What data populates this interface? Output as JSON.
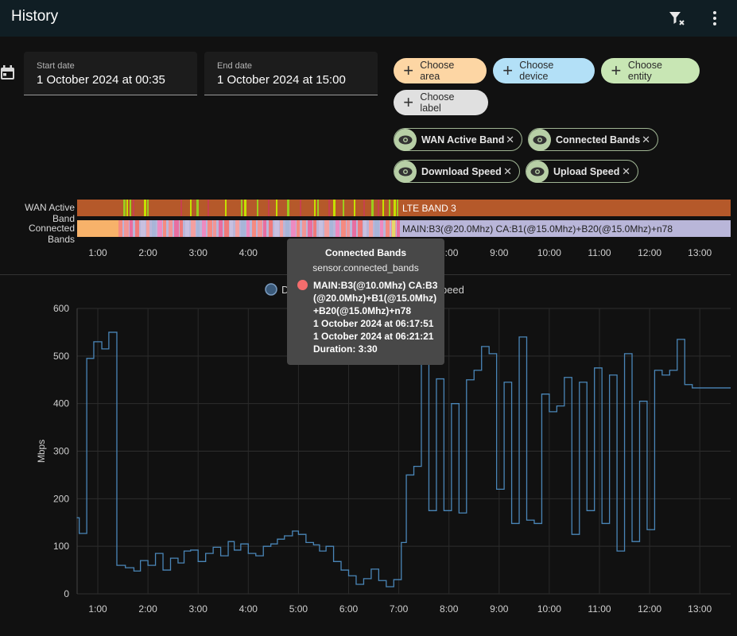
{
  "app": {
    "title": "History"
  },
  "toolbar": {
    "filter_clear_icon": "filter-remove-icon",
    "menu_icon": "dots-vertical-icon"
  },
  "date_range": {
    "start_label": "Start date",
    "start_value": "1 October 2024 at 00:35",
    "end_label": "End date",
    "end_value": "1 October 2024 at 15:00"
  },
  "target_picker": {
    "choose_area": "Choose area",
    "choose_device": "Choose device",
    "choose_entity": "Choose entity",
    "choose_label": "Choose label",
    "colors": {
      "area": "#fdd6a4",
      "device": "#b3e0f7",
      "entity": "#c8e6b4",
      "label": "#e0e0e0"
    }
  },
  "entities": [
    {
      "label": "WAN Active Band"
    },
    {
      "label": "Connected Bands"
    },
    {
      "label": "Download Speed"
    },
    {
      "label": "Upload Speed"
    }
  ],
  "timeline": {
    "rows": [
      {
        "label": "WAN Active Band",
        "current_state": "LTE BAND 3",
        "color": "#b5592a"
      },
      {
        "label": "Connected Bands",
        "current_state": "MAIN:B3(@20.0Mhz) CA:B1(@15.0Mhz)+B20(@15.0Mhz)+n78",
        "color": "#b9b6d9"
      }
    ],
    "x_ticks": [
      "1:00",
      "2:00",
      "3:00",
      "4:00",
      "5:00",
      "6:00",
      "7:00",
      "8:00",
      "9:00",
      "10:00",
      "11:00",
      "12:00",
      "13:00"
    ]
  },
  "tooltip": {
    "title": "Connected Bands",
    "entity_id": "sensor.connected_bands",
    "state": "MAIN:B3(@10.0Mhz) CA:B3(@20.0Mhz)+B1(@15.0Mhz)+B20(@15.0Mhz)+n78",
    "start": "1 October 2024 at 06:17:51",
    "end": "1 October 2024 at 06:21:21",
    "duration": "Duration: 3:30",
    "dot_color": "#f46d6d"
  },
  "chart_data": {
    "type": "line",
    "ylabel": "Mbps",
    "ylim": [
      0,
      600
    ],
    "y_ticks": [
      0,
      100,
      200,
      300,
      400,
      500,
      600
    ],
    "x_ticks": [
      "1:00",
      "2:00",
      "3:00",
      "4:00",
      "5:00",
      "6:00",
      "7:00",
      "8:00",
      "9:00",
      "10:00",
      "11:00",
      "12:00",
      "13:00"
    ],
    "legend": {
      "placement": "top",
      "visible_fragment_left": "D",
      "visible_fragment_right": "oad Speed"
    },
    "grid": true,
    "line_color": "#4a86b8",
    "series": [
      {
        "name": "Download Speed",
        "step": true,
        "points": [
          [
            0.58,
            160
          ],
          [
            0.63,
            127
          ],
          [
            0.78,
            495
          ],
          [
            0.92,
            530
          ],
          [
            1.08,
            515
          ],
          [
            1.22,
            550
          ],
          [
            1.38,
            60
          ],
          [
            1.55,
            55
          ],
          [
            1.72,
            48
          ],
          [
            1.85,
            70
          ],
          [
            2.0,
            60
          ],
          [
            2.15,
            85
          ],
          [
            2.3,
            50
          ],
          [
            2.45,
            75
          ],
          [
            2.6,
            65
          ],
          [
            2.72,
            90
          ],
          [
            2.85,
            92
          ],
          [
            3.0,
            68
          ],
          [
            3.15,
            85
          ],
          [
            3.3,
            98
          ],
          [
            3.45,
            80
          ],
          [
            3.6,
            110
          ],
          [
            3.72,
            92
          ],
          [
            3.85,
            105
          ],
          [
            4.0,
            85
          ],
          [
            4.15,
            80
          ],
          [
            4.3,
            100
          ],
          [
            4.45,
            105
          ],
          [
            4.58,
            115
          ],
          [
            4.72,
            122
          ],
          [
            4.88,
            132
          ],
          [
            5.0,
            125
          ],
          [
            5.15,
            108
          ],
          [
            5.3,
            103
          ],
          [
            5.42,
            90
          ],
          [
            5.55,
            100
          ],
          [
            5.7,
            68
          ],
          [
            5.85,
            50
          ],
          [
            6.0,
            38
          ],
          [
            6.15,
            20
          ],
          [
            6.3,
            32
          ],
          [
            6.45,
            52
          ],
          [
            6.6,
            28
          ],
          [
            6.75,
            15
          ],
          [
            6.9,
            30
          ],
          [
            7.05,
            108
          ],
          [
            7.15,
            250
          ],
          [
            7.3,
            268
          ],
          [
            7.45,
            520
          ],
          [
            7.6,
            175
          ],
          [
            7.75,
            452
          ],
          [
            7.9,
            175
          ],
          [
            8.05,
            400
          ],
          [
            8.2,
            170
          ],
          [
            8.35,
            450
          ],
          [
            8.5,
            470
          ],
          [
            8.65,
            520
          ],
          [
            8.8,
            505
          ],
          [
            8.95,
            220
          ],
          [
            9.1,
            445
          ],
          [
            9.25,
            148
          ],
          [
            9.4,
            540
          ],
          [
            9.55,
            155
          ],
          [
            9.7,
            148
          ],
          [
            9.85,
            420
          ],
          [
            10.0,
            383
          ],
          [
            10.15,
            395
          ],
          [
            10.3,
            455
          ],
          [
            10.45,
            125
          ],
          [
            10.6,
            445
          ],
          [
            10.75,
            175
          ],
          [
            10.9,
            475
          ],
          [
            11.05,
            148
          ],
          [
            11.2,
            460
          ],
          [
            11.35,
            90
          ],
          [
            11.5,
            505
          ],
          [
            11.65,
            110
          ],
          [
            11.8,
            405
          ],
          [
            11.95,
            135
          ],
          [
            12.1,
            470
          ],
          [
            12.25,
            460
          ],
          [
            12.4,
            470
          ],
          [
            12.55,
            535
          ],
          [
            12.7,
            440
          ],
          [
            12.85,
            433
          ]
        ]
      }
    ]
  }
}
